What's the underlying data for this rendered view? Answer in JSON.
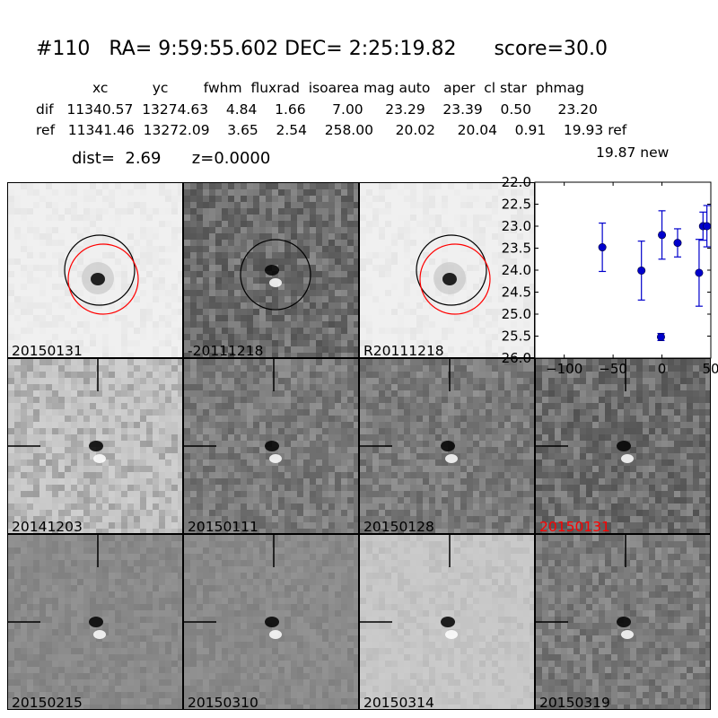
{
  "header": {
    "title": "#110   RA= 9:59:55.602 DEC= 2:25:19.82      score=30.0"
  },
  "stats": {
    "header_row": "xc          yc        fwhm  fluxrad  isoarea mag auto   aper  cl star  phmag",
    "dif_row": "dif   11340.57  13274.63    4.84    1.66      7.00     23.29    23.39    0.50      23.20",
    "ref_row": "ref   11341.46  13272.09    3.65    2.54    258.00     20.02     20.04    0.91    19.93 ref",
    "new_row": "19.87 new",
    "dist_line": "dist=  2.69      z=0.0000"
  },
  "panels": [
    {
      "label": "20150131",
      "style": "light"
    },
    {
      "label": "-20111218",
      "style": "dark"
    },
    {
      "label": "R20111218",
      "style": "light"
    },
    {
      "label": "20141203",
      "style": "noisy"
    },
    {
      "label": "20150111",
      "style": "mid"
    },
    {
      "label": "20150128",
      "style": "mid"
    },
    {
      "label": "20150131",
      "style": "dark",
      "label_color": "#ff0000"
    },
    {
      "label": "20150215",
      "style": "smooth"
    },
    {
      "label": "20150310",
      "style": "smooth"
    },
    {
      "label": "20150314",
      "style": "smooth-light"
    },
    {
      "label": "20150319",
      "style": "mid"
    }
  ],
  "colors": {
    "marker": "#0000cc",
    "circle_ref": "#000000",
    "circle_new": "#ff0000",
    "highlight_label": "#ff0000"
  },
  "chart_data": {
    "type": "scatter",
    "title": "",
    "xlabel": "",
    "ylabel": "",
    "xlim": [
      -130,
      50
    ],
    "ylim": [
      26.0,
      22.0
    ],
    "y_inverted": true,
    "xticks": [
      "−100",
      "−50",
      "0",
      "50"
    ],
    "yticks": [
      "22.0",
      "22.5",
      "23.0",
      "23.5",
      "24.0",
      "24.5",
      "25.0",
      "25.5",
      "26.0"
    ],
    "points": [
      {
        "x": -61,
        "y": 23.48,
        "err": 0.55
      },
      {
        "x": -21,
        "y": 24.01,
        "err": 0.67
      },
      {
        "x": -1,
        "y": 25.52,
        "err": 0.08
      },
      {
        "x": 0,
        "y": 23.2,
        "err": 0.55
      },
      {
        "x": 16,
        "y": 23.38,
        "err": 0.32
      },
      {
        "x": 38,
        "y": 24.06,
        "err": 0.76
      },
      {
        "x": 42,
        "y": 23.0,
        "err": 0.32
      },
      {
        "x": 46,
        "y": 23.0,
        "err": 0.47
      }
    ]
  }
}
